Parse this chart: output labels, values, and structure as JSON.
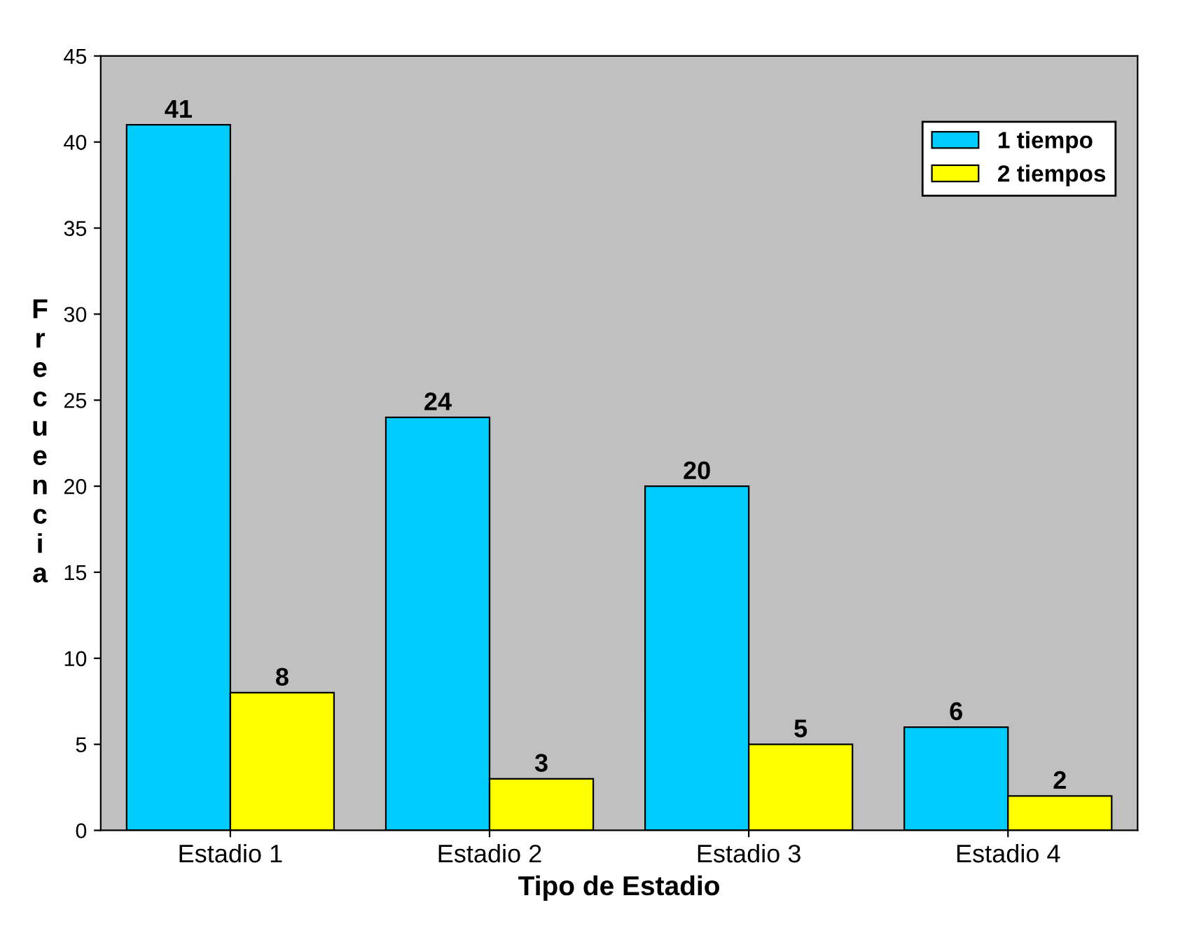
{
  "chart_data": {
    "type": "bar",
    "xlabel": "Tipo de Estadio",
    "ylabel": "Frecuencia",
    "categories": [
      "Estadio 1",
      "Estadio 2",
      "Estadio 3",
      "Estadio 4"
    ],
    "series": [
      {
        "name": "1 tiempo",
        "color": "#00ccff",
        "values": [
          41,
          24,
          20,
          6
        ]
      },
      {
        "name": "2 tiempos",
        "color": "#ffff00",
        "values": [
          8,
          3,
          5,
          2
        ]
      }
    ],
    "ylim": [
      0,
      45
    ],
    "yticks": [
      0,
      5,
      10,
      15,
      20,
      25,
      30,
      35,
      40,
      45
    ],
    "data_labels": true,
    "legend": "top right",
    "grid": false
  }
}
